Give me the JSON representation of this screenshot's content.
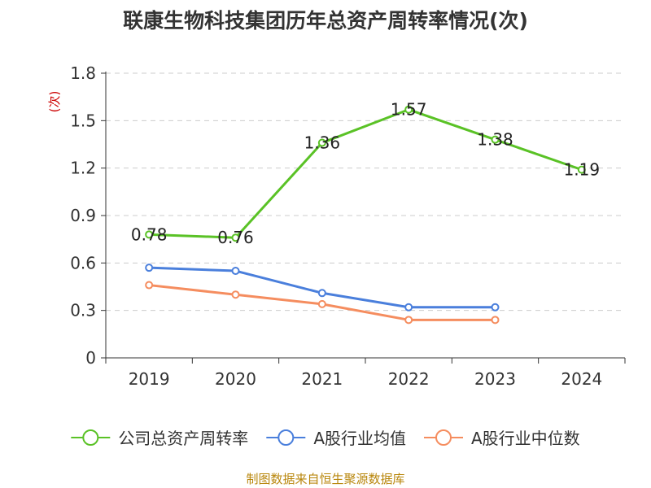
{
  "chart_data": {
    "type": "line",
    "title": "联康生物科技集团历年总资产周转率情况(次)",
    "ylabel": "(次)",
    "xlabel": "",
    "categories": [
      "2019",
      "2020",
      "2021",
      "2022",
      "2023",
      "2024"
    ],
    "ylim": [
      0,
      1.8
    ],
    "yticks": [
      "0",
      "0.3",
      "0.6",
      "0.9",
      "1.2",
      "1.5",
      "1.8"
    ],
    "grid": true,
    "legend_position": "bottom",
    "series": [
      {
        "name": "公司总资产周转率",
        "color": "#5ac226",
        "values": [
          0.78,
          0.76,
          1.36,
          1.57,
          1.38,
          1.19
        ],
        "labels": [
          "0.78",
          "0.76",
          "1.36",
          "1.57",
          "1.38",
          "1.19"
        ]
      },
      {
        "name": "A股行业均值",
        "color": "#4a7fdc",
        "values": [
          0.57,
          0.55,
          0.41,
          0.32,
          0.32,
          null
        ]
      },
      {
        "name": "A股行业中位数",
        "color": "#f58d5f",
        "values": [
          0.46,
          0.4,
          0.34,
          0.24,
          0.24,
          null
        ]
      }
    ],
    "source": "制图数据来自恒生聚源数据库"
  }
}
